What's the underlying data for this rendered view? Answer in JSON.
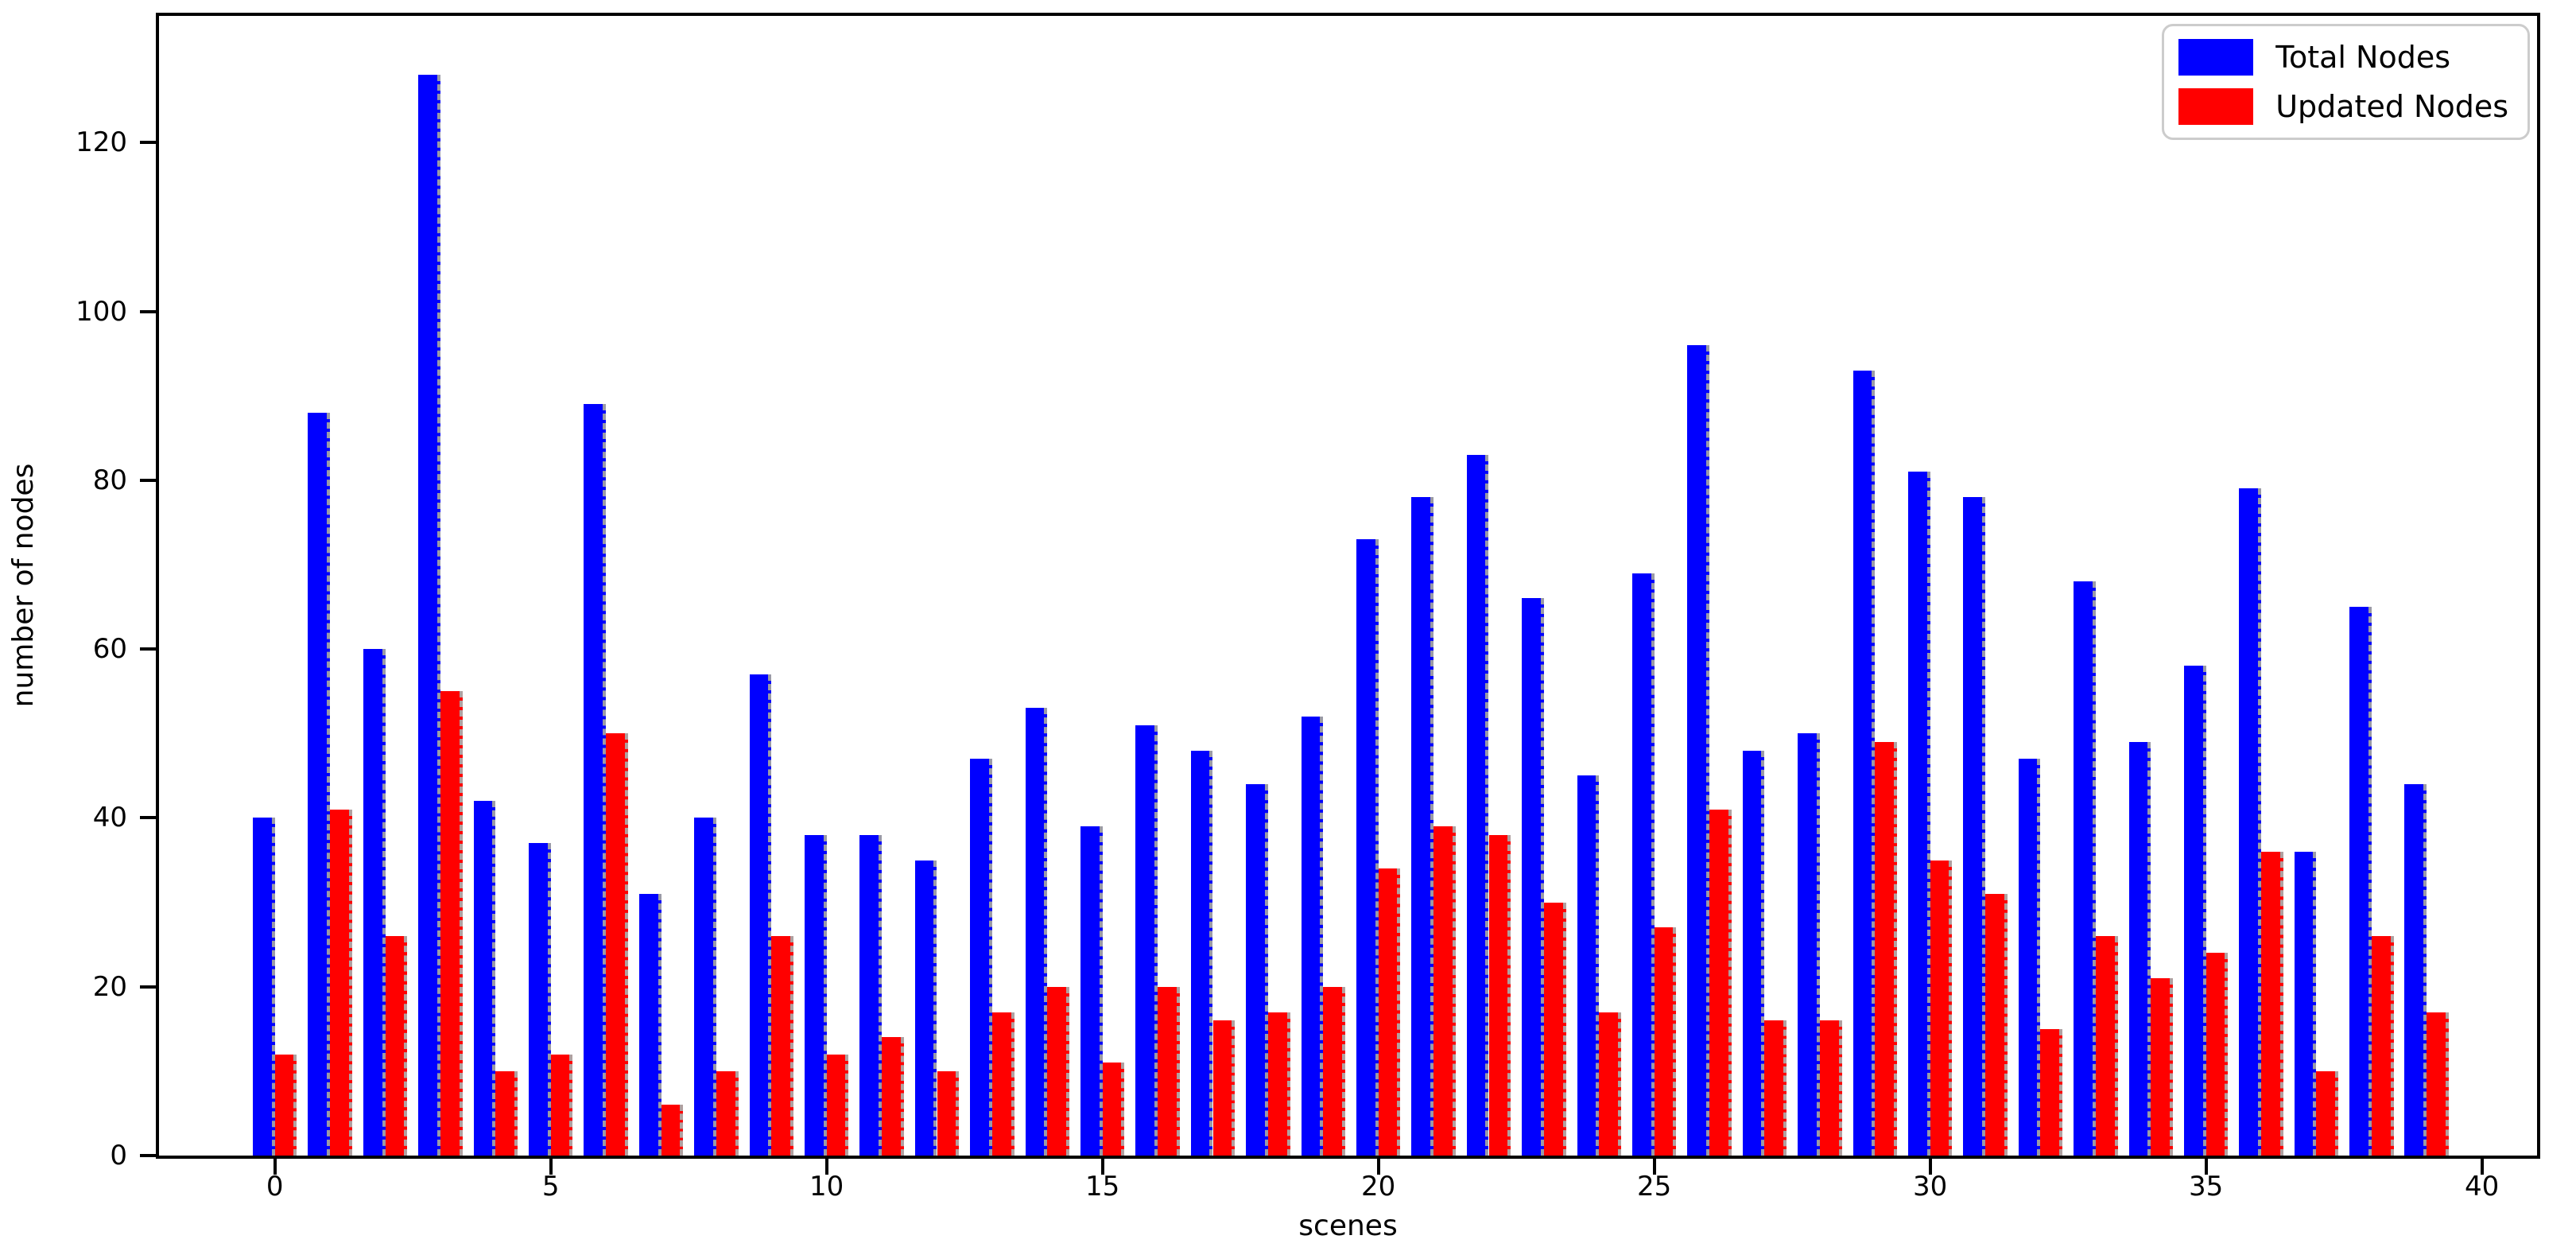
{
  "chart_data": {
    "type": "bar",
    "title": "",
    "xlabel": "scenes",
    "ylabel": "number of nodes",
    "categories": [
      0,
      1,
      2,
      3,
      4,
      5,
      6,
      7,
      8,
      9,
      10,
      11,
      12,
      13,
      14,
      15,
      16,
      17,
      18,
      19,
      20,
      21,
      22,
      23,
      24,
      25,
      26,
      27,
      28,
      29,
      30,
      31,
      32,
      33,
      34,
      35,
      36,
      37,
      38,
      39
    ],
    "series": [
      {
        "name": "Total Nodes",
        "color": "#0000ff",
        "values": [
          40,
          88,
          60,
          128,
          42,
          37,
          89,
          31,
          40,
          57,
          38,
          38,
          35,
          47,
          53,
          39,
          51,
          48,
          44,
          52,
          73,
          78,
          83,
          66,
          45,
          69,
          96,
          48,
          50,
          93,
          81,
          78,
          47,
          68,
          49,
          58,
          79,
          36,
          65,
          44
        ]
      },
      {
        "name": "Updated Nodes",
        "color": "#ff0000",
        "values": [
          12,
          41,
          26,
          55,
          10,
          12,
          50,
          6,
          10,
          26,
          12,
          14,
          10,
          17,
          20,
          11,
          20,
          16,
          17,
          20,
          34,
          39,
          38,
          30,
          17,
          27,
          41,
          16,
          16,
          49,
          35,
          31,
          15,
          26,
          21,
          24,
          36,
          10,
          26,
          17
        ]
      }
    ],
    "bar_width_units": 0.4,
    "xticks": [
      0,
      5,
      10,
      15,
      20,
      25,
      30,
      35,
      40
    ],
    "yticks": [
      0,
      20,
      40,
      60,
      80,
      100,
      120
    ],
    "xlim": [
      -2.1,
      41.0
    ],
    "ylim": [
      0,
      135
    ],
    "grid": false,
    "legend_position": "upper right"
  }
}
